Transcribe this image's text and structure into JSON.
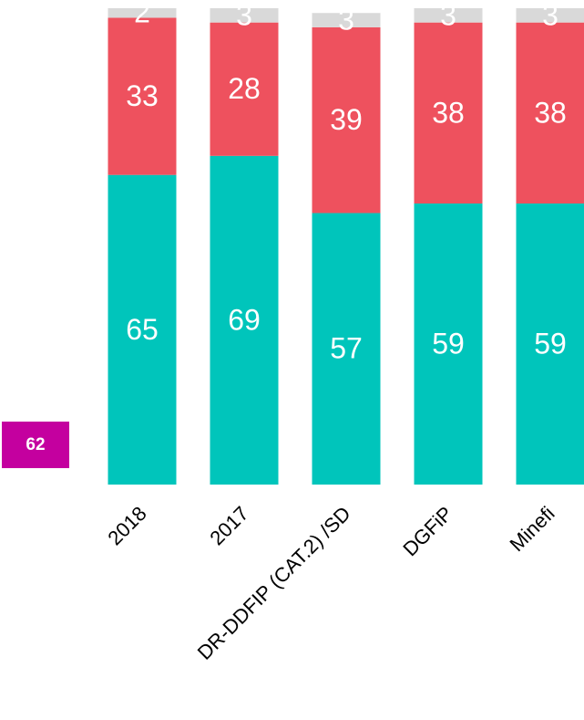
{
  "chart_data": {
    "type": "stacked_bar",
    "categories": [
      "2018",
      "2017",
      "DR-DDFIP (CAT.2) /SD",
      "DGFiP",
      "Minefi"
    ],
    "series": [
      {
        "color": "#00c5bb",
        "values": [
          65,
          69,
          57,
          59,
          59
        ]
      },
      {
        "color": "#ee515e",
        "values": [
          33,
          28,
          39,
          38,
          38
        ]
      },
      {
        "color": "#d9d9d9",
        "values": [
          2,
          3,
          3,
          3,
          3
        ]
      }
    ],
    "ylim": [
      0,
      100
    ],
    "annotation": {
      "text": "62",
      "color": "#c4009f"
    }
  }
}
